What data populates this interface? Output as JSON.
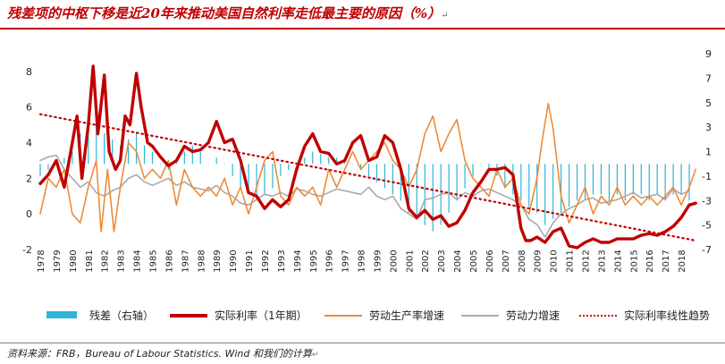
{
  "title": "残差项的中枢下移是近20年来推动美国自然利率走低最主要的原因（%）",
  "title_mark": "↵",
  "source": "资料来源：FRB，Bureau of Labour Statistics. Wind 和我们的计算",
  "source_mark": "↵",
  "colors": {
    "residual": "#2cb5d8",
    "real_rate": "#c00000",
    "labor_productivity": "#ed8b3a",
    "labor_force": "#a9a9a9",
    "trend": "#c00000",
    "title": "#c00000"
  },
  "legend": {
    "residual": "残差（右轴）",
    "real_rate": "实际利率（1年期）",
    "labor_productivity": "劳动生产率增速",
    "labor_force": "劳动力增速",
    "trend": "实际利率线性趋势"
  },
  "chart_data": {
    "type": "line",
    "title": "残差项的中枢下移是近20年来推动美国自然利率走低最主要的原因（%）",
    "x_ticks": [
      "1978",
      "1979",
      "1980",
      "1981",
      "1982",
      "1983",
      "1984",
      "1985",
      "1986",
      "1987",
      "1988",
      "1989",
      "1990",
      "1991",
      "1992",
      "1993",
      "1994",
      "1995",
      "1996",
      "1997",
      "1998",
      "1999",
      "2000",
      "2001",
      "2002",
      "2003",
      "2004",
      "2005",
      "2006",
      "2007",
      "2008",
      "2009",
      "2010",
      "2011",
      "2012",
      "2013",
      "2014",
      "2015",
      "2016",
      "2017",
      "2018"
    ],
    "x_range": [
      1978,
      2019
    ],
    "y_left": {
      "ticks": [
        8,
        6,
        4,
        2,
        0,
        -2
      ],
      "range": [
        -2,
        9
      ]
    },
    "y_right": {
      "ticks": [
        9,
        7,
        5,
        3,
        1,
        -1,
        -3,
        -5,
        -7
      ],
      "range": [
        -7,
        9
      ]
    },
    "series": [
      {
        "name": "残差（右轴）",
        "type": "bar",
        "axis": "right",
        "x": [
          1978.0,
          1978.5,
          1979.0,
          1979.5,
          1980.0,
          1980.5,
          1981.0,
          1981.5,
          1982.0,
          1982.5,
          1983.0,
          1983.5,
          1984.0,
          1984.5,
          1985.0,
          1985.5,
          1986.0,
          1986.5,
          1987.0,
          1987.5,
          1988.0,
          1988.5,
          1989.0,
          1989.5,
          1990.0,
          1990.5,
          1991.0,
          1991.5,
          1992.0,
          1992.5,
          1993.0,
          1993.5,
          1994.0,
          1994.5,
          1995.0,
          1995.5,
          1996.0,
          1996.5,
          1997.0,
          1997.5,
          1998.0,
          1998.5,
          1999.0,
          1999.5,
          2000.0,
          2000.5,
          2001.0,
          2001.5,
          2002.0,
          2002.5,
          2003.0,
          2003.5,
          2004.0,
          2004.5,
          2005.0,
          2005.5,
          2006.0,
          2006.5,
          2007.0,
          2007.5,
          2008.0,
          2008.5,
          2009.0,
          2009.5,
          2010.0,
          2010.5,
          2011.0,
          2011.5,
          2012.0,
          2012.5,
          2013.0,
          2013.5,
          2014.0,
          2014.5,
          2015.0,
          2015.5,
          2016.0,
          2016.5,
          2017.0,
          2017.5,
          2018.0,
          2018.5
        ],
        "values": [
          -1,
          -0.5,
          0,
          0.5,
          1,
          2.5,
          3,
          3.5,
          2.5,
          2,
          1.5,
          2,
          2.5,
          1.5,
          1,
          0,
          -0.5,
          0.5,
          1,
          1.5,
          1,
          0,
          0.5,
          0,
          -1,
          -2,
          -2.5,
          -3,
          -2.5,
          -2,
          -1,
          -0.5,
          0,
          0.5,
          1,
          0.8,
          0.5,
          0.5,
          0.3,
          0,
          -0.5,
          -1,
          -1.5,
          -2,
          -2.5,
          -3,
          -4,
          -4.5,
          -5,
          -5.5,
          -5,
          -4,
          -3,
          -2,
          -1,
          0,
          -0.5,
          -1,
          -2,
          -2.5,
          -3,
          -3.5,
          -4,
          -5,
          -4.5,
          -4,
          -3.5,
          -3,
          -3,
          -2.5,
          -2.5,
          -3,
          -2.5,
          -3,
          -2.5,
          -2.5,
          -3,
          -2.5,
          -3,
          -2.5,
          -2.5,
          -3
        ]
      },
      {
        "name": "实际利率（1年期）",
        "type": "line",
        "axis": "left",
        "x": [
          1978.0,
          1978.5,
          1979.0,
          1979.5,
          1980.0,
          1980.3,
          1980.6,
          1981.0,
          1981.3,
          1981.6,
          1982.0,
          1982.3,
          1982.7,
          1983.0,
          1983.3,
          1983.6,
          1984.0,
          1984.3,
          1984.7,
          1985.0,
          1985.5,
          1986.0,
          1986.5,
          1987.0,
          1987.5,
          1988.0,
          1988.5,
          1989.0,
          1989.5,
          1990.0,
          1990.5,
          1991.0,
          1991.5,
          1992.0,
          1992.5,
          1993.0,
          1993.5,
          1994.0,
          1994.5,
          1995.0,
          1995.5,
          1996.0,
          1996.5,
          1997.0,
          1997.5,
          1998.0,
          1998.5,
          1999.0,
          1999.5,
          2000.0,
          2000.5,
          2001.0,
          2001.5,
          2002.0,
          2002.5,
          2003.0,
          2003.5,
          2004.0,
          2004.5,
          2005.0,
          2005.5,
          2006.0,
          2006.5,
          2007.0,
          2007.5,
          2008.0,
          2008.3,
          2008.6,
          2009.0,
          2009.5,
          2010.0,
          2010.5,
          2011.0,
          2011.5,
          2012.0,
          2012.5,
          2013.0,
          2013.5,
          2014.0,
          2014.5,
          2015.0,
          2015.5,
          2016.0,
          2016.5,
          2017.0,
          2017.5,
          2018.0,
          2018.5,
          2018.9
        ],
        "values": [
          1.7,
          2.2,
          3.0,
          1.5,
          4.0,
          5.5,
          2.0,
          5.0,
          8.3,
          4.5,
          7.8,
          3.5,
          2.5,
          3.0,
          5.5,
          5.0,
          7.9,
          6.0,
          4.0,
          3.8,
          3.2,
          2.7,
          3.0,
          3.8,
          3.5,
          3.6,
          4.0,
          5.2,
          4.0,
          4.2,
          3.0,
          1.2,
          1.0,
          0.3,
          0.8,
          0.4,
          0.8,
          2.5,
          3.8,
          4.5,
          3.5,
          3.4,
          2.8,
          3.0,
          4.0,
          4.4,
          3.0,
          3.2,
          4.4,
          4.0,
          2.5,
          0.3,
          -0.2,
          0.2,
          -0.3,
          -0.1,
          -0.7,
          -0.5,
          0.2,
          1.2,
          1.8,
          2.5,
          2.5,
          2.6,
          2.2,
          -0.8,
          -1.5,
          -1.5,
          -1.3,
          -1.6,
          -1.0,
          -0.8,
          -1.8,
          -1.9,
          -1.6,
          -1.4,
          -1.6,
          -1.6,
          -1.4,
          -1.4,
          -1.4,
          -1.2,
          -1.1,
          -1.2,
          -1.0,
          -0.7,
          -0.2,
          0.5,
          0.6
        ]
      },
      {
        "name": "劳动生产率增速",
        "type": "line",
        "axis": "left",
        "x": [
          1978.0,
          1978.5,
          1979.0,
          1979.5,
          1980.0,
          1980.5,
          1981.0,
          1981.5,
          1981.8,
          1982.2,
          1982.6,
          1983.0,
          1983.5,
          1984.0,
          1984.5,
          1985.0,
          1985.5,
          1986.0,
          1986.5,
          1987.0,
          1987.5,
          1988.0,
          1988.5,
          1989.0,
          1989.5,
          1990.0,
          1990.5,
          1991.0,
          1991.5,
          1992.0,
          1992.5,
          1993.0,
          1993.5,
          1994.0,
          1994.5,
          1995.0,
          1995.5,
          1996.0,
          1996.5,
          1997.0,
          1997.5,
          1998.0,
          1998.5,
          1999.0,
          1999.5,
          2000.0,
          2000.5,
          2001.0,
          2001.5,
          2002.0,
          2002.5,
          2003.0,
          2003.5,
          2004.0,
          2004.5,
          2005.0,
          2005.5,
          2006.0,
          2006.5,
          2007.0,
          2007.5,
          2008.0,
          2008.5,
          2009.0,
          2009.3,
          2009.7,
          2010.0,
          2010.5,
          2011.0,
          2011.5,
          2012.0,
          2012.5,
          2013.0,
          2013.5,
          2014.0,
          2014.5,
          2015.0,
          2015.5,
          2016.0,
          2016.5,
          2017.0,
          2017.5,
          2018.0,
          2018.5,
          2018.9
        ],
        "values": [
          0.0,
          2.0,
          1.5,
          2.5,
          0.0,
          -0.5,
          1.5,
          3.0,
          -1.0,
          2.5,
          -1.0,
          1.5,
          4.0,
          3.5,
          2.0,
          2.5,
          2.0,
          3.0,
          0.5,
          2.5,
          1.5,
          1.0,
          1.5,
          1.0,
          2.0,
          0.5,
          1.5,
          0.0,
          1.5,
          3.0,
          3.5,
          1.0,
          0.5,
          1.5,
          1.0,
          1.5,
          0.5,
          2.5,
          1.5,
          2.5,
          3.5,
          2.5,
          3.0,
          3.5,
          4.0,
          3.0,
          2.5,
          1.5,
          2.5,
          4.5,
          5.5,
          3.5,
          4.5,
          5.3,
          3.0,
          2.0,
          1.5,
          1.0,
          2.5,
          1.5,
          2.0,
          0.5,
          0.0,
          2.0,
          4.0,
          6.2,
          4.8,
          1.0,
          -0.5,
          0.5,
          1.5,
          0.0,
          1.0,
          0.5,
          1.5,
          0.5,
          1.0,
          0.5,
          1.0,
          0.5,
          1.0,
          1.5,
          0.5,
          1.5,
          2.5
        ]
      },
      {
        "name": "劳动力增速",
        "type": "line",
        "axis": "left",
        "x": [
          1978.0,
          1978.5,
          1979.0,
          1979.5,
          1980.0,
          1980.5,
          1981.0,
          1981.5,
          1982.0,
          1982.5,
          1983.0,
          1983.5,
          1984.0,
          1984.5,
          1985.0,
          1985.5,
          1986.0,
          1986.5,
          1987.0,
          1987.5,
          1988.0,
          1988.5,
          1989.0,
          1989.5,
          1990.0,
          1990.5,
          1991.0,
          1991.5,
          1992.0,
          1992.5,
          1993.0,
          1993.5,
          1994.0,
          1994.5,
          1995.0,
          1995.5,
          1996.0,
          1996.5,
          1997.0,
          1997.5,
          1998.0,
          1998.5,
          1999.0,
          1999.5,
          2000.0,
          2000.5,
          2001.0,
          2001.5,
          2002.0,
          2002.5,
          2003.0,
          2003.5,
          2004.0,
          2004.5,
          2005.0,
          2005.5,
          2006.0,
          2006.5,
          2007.0,
          2007.5,
          2008.0,
          2008.5,
          2009.0,
          2009.5,
          2010.0,
          2010.5,
          2011.0,
          2011.5,
          2012.0,
          2012.5,
          2013.0,
          2013.5,
          2014.0,
          2014.5,
          2015.0,
          2015.5,
          2016.0,
          2016.5,
          2017.0,
          2017.5,
          2018.0,
          2018.5
        ],
        "values": [
          3.0,
          3.2,
          3.3,
          2.5,
          2.0,
          1.5,
          1.8,
          1.2,
          1.0,
          1.3,
          1.5,
          2.0,
          2.2,
          1.8,
          1.6,
          1.8,
          2.0,
          1.6,
          1.8,
          1.5,
          1.4,
          1.3,
          1.6,
          1.2,
          1.0,
          0.6,
          0.5,
          0.8,
          1.1,
          1.0,
          1.2,
          1.0,
          1.4,
          1.3,
          1.1,
          1.0,
          1.2,
          1.4,
          1.3,
          1.2,
          1.1,
          1.5,
          1.0,
          0.8,
          1.0,
          0.3,
          0.0,
          -0.3,
          0.8,
          0.9,
          1.1,
          1.2,
          0.8,
          1.2,
          1.0,
          1.3,
          1.4,
          1.2,
          1.0,
          0.8,
          0.5,
          -0.3,
          -0.6,
          -1.3,
          -0.5,
          0.0,
          0.3,
          0.5,
          0.8,
          0.9,
          0.6,
          0.7,
          0.8,
          1.0,
          1.2,
          0.9,
          1.0,
          1.1,
          0.8,
          1.4,
          1.1,
          1.3
        ]
      },
      {
        "name": "实际利率线性趋势",
        "type": "line",
        "style": "dotted",
        "axis": "left",
        "x": [
          1978.0,
          2018.9
        ],
        "values": [
          5.6,
          -1.5
        ]
      }
    ]
  }
}
